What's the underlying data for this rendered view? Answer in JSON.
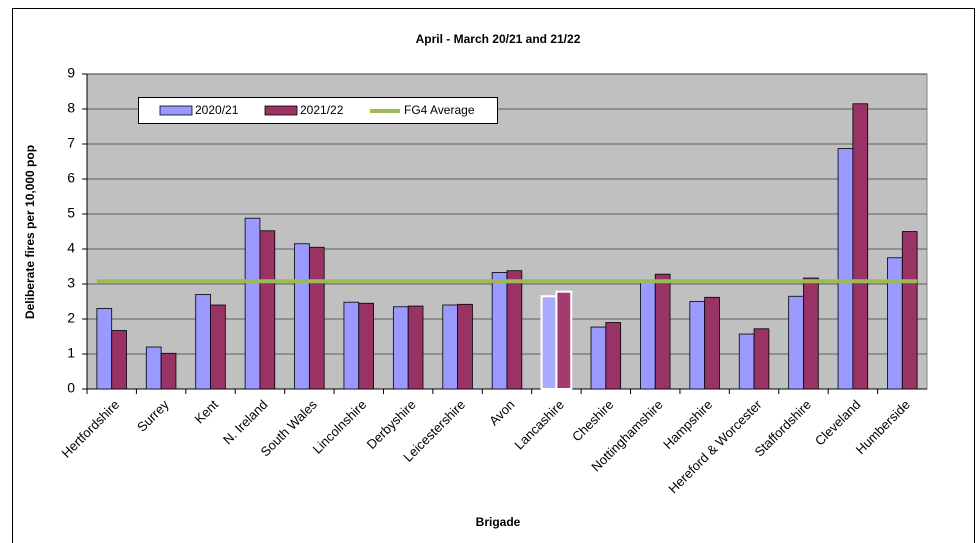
{
  "chart_data": {
    "type": "bar",
    "title": "April - March 20/21 and 21/22",
    "x_label": "Brigade",
    "y_label": "Deliberate fires per 10,000 pop",
    "categories": [
      "Hertfordshire",
      "Surrey",
      "Kent",
      "N. Ireland",
      "South Wales",
      "Lincolnshire",
      "Derbyshire",
      "Leicestershire",
      "Avon",
      "Lancashire",
      "Cheshire",
      "Nottinghamshire",
      "Hampshire",
      "Hereford & Worcester",
      "Staffordshire",
      "Cleveland",
      "Humberside"
    ],
    "series": [
      {
        "name": "2020/21",
        "color": "#9999ff",
        "highlight_color": "#aaaaff",
        "values": [
          2.3,
          1.2,
          2.7,
          4.88,
          4.15,
          2.48,
          2.35,
          2.4,
          3.33,
          2.65,
          1.77,
          3.05,
          2.5,
          1.57,
          2.65,
          6.87,
          3.75
        ]
      },
      {
        "name": "2021/22",
        "color": "#993366",
        "highlight_color": "#a33a70",
        "values": [
          1.67,
          1.02,
          2.4,
          4.52,
          4.05,
          2.45,
          2.37,
          2.42,
          3.38,
          2.78,
          1.9,
          3.28,
          2.62,
          1.72,
          3.17,
          8.15,
          4.5
        ]
      }
    ],
    "highlight": "Lancashire",
    "reference_line": {
      "name": "FG4 Average",
      "color": "#9bbb59",
      "value": 3.08
    },
    "ylim": [
      0,
      9
    ],
    "yticks": [
      0,
      1,
      2,
      3,
      4,
      5,
      6,
      7,
      8,
      9
    ],
    "grid": true
  }
}
